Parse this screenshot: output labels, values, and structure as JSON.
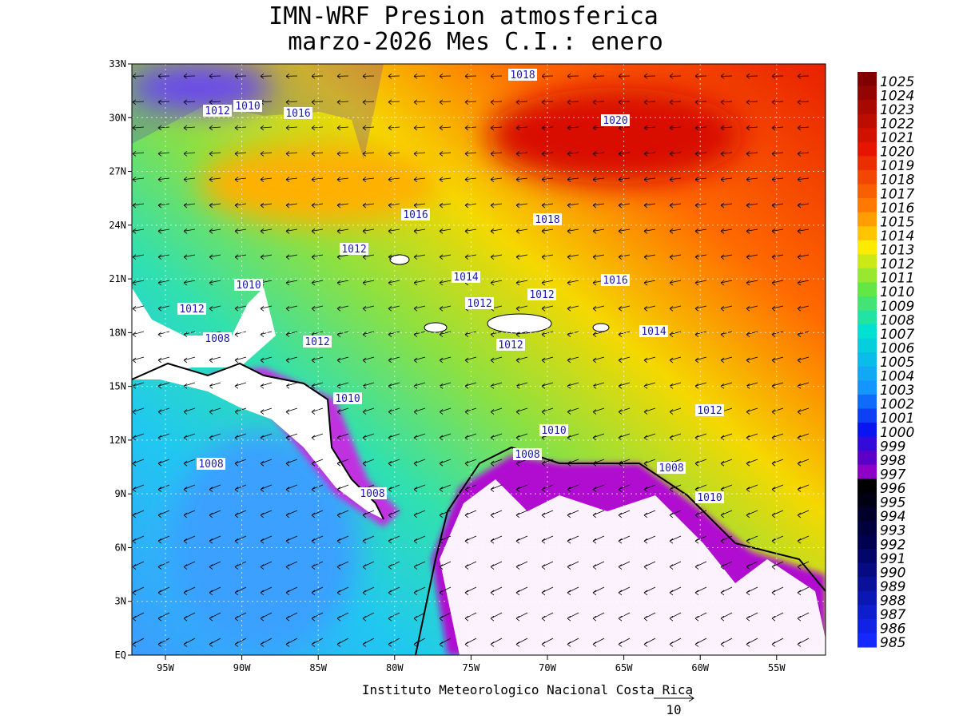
{
  "header": {
    "title": "IMN-WRF  Presion atmosferica",
    "subtitle": "marzo-2026 Mes C.I.: enero"
  },
  "map": {
    "lat_labels": [
      "33N",
      "30N",
      "27N",
      "24N",
      "21N",
      "18N",
      "15N",
      "12N",
      "9N",
      "6N",
      "3N",
      "EQ"
    ],
    "lon_labels": [
      "95W",
      "90W",
      "85W",
      "80W",
      "75W",
      "70W",
      "65W",
      "60W",
      "55W"
    ],
    "contour_labels": [
      "1018",
      "1012",
      "1010",
      "1016",
      "1020",
      "1016",
      "1018",
      "1012",
      "1014",
      "1010",
      "1016",
      "1012",
      "1012",
      "1012",
      "1008",
      "1012",
      "1014",
      "1012",
      "1010",
      "1012",
      "1010",
      "1008",
      "1008",
      "1008",
      "1008",
      "1010"
    ]
  },
  "colorbar": {
    "labels": [
      1025,
      1024,
      1023,
      1022,
      1021,
      1020,
      1019,
      1018,
      1017,
      1016,
      1015,
      1014,
      1013,
      1012,
      1011,
      1010,
      1009,
      1008,
      1007,
      1006,
      1005,
      1004,
      1003,
      1002,
      1001,
      1000,
      999,
      998,
      997,
      996,
      995,
      994,
      993,
      992,
      991,
      990,
      989,
      988,
      987,
      986,
      985
    ]
  },
  "footer": {
    "credit": "Instituto Meteorologico Nacional Costa Rica",
    "vector_scale": "10"
  }
}
